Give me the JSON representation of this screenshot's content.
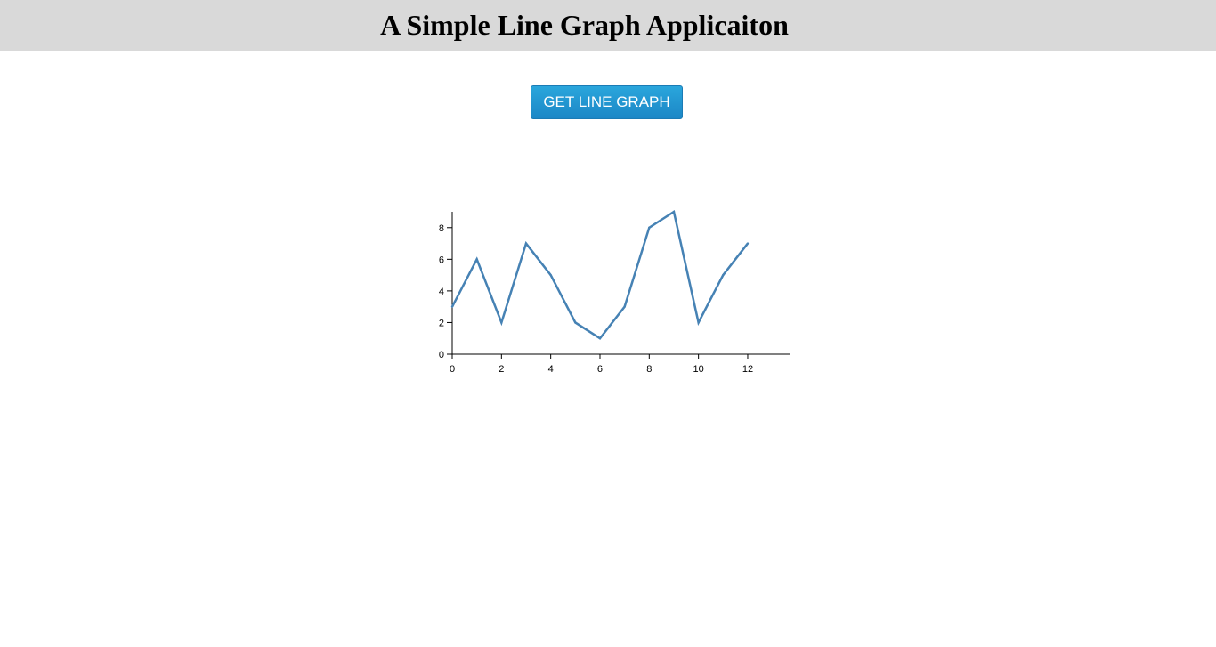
{
  "header": {
    "title": "A Simple Line Graph Applicaiton"
  },
  "controls": {
    "get_button_label": "GET LINE GRAPH"
  },
  "colors": {
    "header_bg": "#d9d9d9",
    "button": "#1c8ccc",
    "line": "#4682b4"
  },
  "chart_data": {
    "type": "line",
    "x": [
      0,
      1,
      2,
      3,
      4,
      5,
      6,
      7,
      8,
      9,
      10,
      11,
      12
    ],
    "y": [
      3,
      6,
      2,
      7,
      5,
      2,
      1,
      3,
      8,
      9,
      2,
      5,
      7
    ],
    "xlim": [
      0,
      13.7
    ],
    "ylim": [
      0,
      9
    ],
    "xticks": [
      0,
      2,
      4,
      6,
      8,
      10,
      12
    ],
    "yticks": [
      0,
      2,
      4,
      6,
      8
    ],
    "title": "",
    "xlabel": "",
    "ylabel": "",
    "grid": false
  }
}
